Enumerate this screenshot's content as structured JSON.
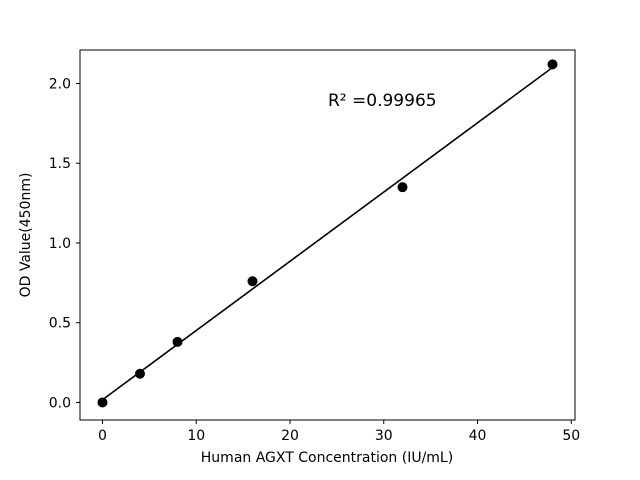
{
  "figure": {
    "background": "#ffffff"
  },
  "chart_data": {
    "type": "scatter",
    "x": [
      0,
      4,
      8,
      16,
      32,
      48
    ],
    "y": [
      0.0,
      0.18,
      0.38,
      0.76,
      1.35,
      2.12
    ],
    "fit_line": true,
    "annotation": "R² =0.99965",
    "title": "",
    "xlabel": "Human AGXT Concentration (IU/mL)",
    "ylabel": "OD Value(450nm)",
    "xlim": [
      -2.4,
      50.4
    ],
    "ylim": [
      -0.11,
      2.21
    ],
    "xticks": [
      0,
      10,
      20,
      30,
      40,
      50
    ],
    "xtick_labels": [
      "0",
      "10",
      "20",
      "30",
      "40",
      "50"
    ],
    "yticks": [
      0.0,
      0.5,
      1.0,
      1.5,
      2.0
    ],
    "ytick_labels": [
      "0.0",
      "0.5",
      "1.0",
      "1.5",
      "2.0"
    ],
    "grid": false,
    "legend": "none",
    "marker_color": "#000000",
    "line_color": "#000000",
    "frame_color": "#000000"
  }
}
